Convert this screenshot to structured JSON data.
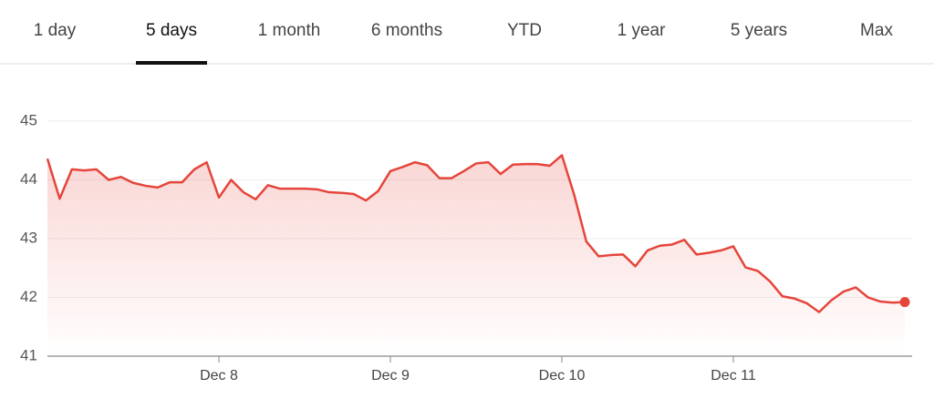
{
  "tabs": [
    "1 day",
    "5 days",
    "1 month",
    "6 months",
    "YTD",
    "1 year",
    "5 years",
    "Max"
  ],
  "selected_tab": 1,
  "chart_data": {
    "type": "line",
    "color": "#e5453b",
    "grid": true,
    "categories": [
      null,
      null,
      null,
      null,
      null,
      null,
      null,
      null,
      null,
      null,
      null,
      null,
      null,
      null,
      "Dec 8",
      null,
      null,
      null,
      null,
      null,
      null,
      null,
      null,
      null,
      null,
      null,
      null,
      null,
      "Dec 9",
      null,
      null,
      null,
      null,
      null,
      null,
      null,
      null,
      null,
      null,
      null,
      null,
      null,
      "Dec 10",
      null,
      null,
      null,
      null,
      null,
      null,
      null,
      null,
      null,
      null,
      null,
      null,
      null,
      "Dec 11",
      null,
      null,
      null,
      null,
      null,
      null,
      null,
      null,
      null,
      null,
      null,
      null,
      null,
      null
    ],
    "values": [
      44.36,
      43.68,
      44.18,
      44.16,
      44.18,
      44.0,
      44.05,
      43.95,
      43.9,
      43.87,
      43.96,
      43.96,
      44.18,
      44.3,
      43.7,
      44.0,
      43.79,
      43.67,
      43.91,
      43.85,
      43.85,
      43.85,
      43.84,
      43.79,
      43.78,
      43.76,
      43.65,
      43.81,
      44.15,
      44.22,
      44.3,
      44.25,
      44.03,
      44.03,
      44.15,
      44.28,
      44.3,
      44.1,
      44.26,
      44.27,
      44.27,
      44.24,
      44.42,
      43.75,
      42.95,
      42.7,
      42.72,
      42.73,
      42.53,
      42.8,
      42.88,
      42.9,
      42.98,
      42.73,
      42.76,
      42.8,
      42.87,
      42.51,
      42.45,
      42.27,
      42.02,
      41.98,
      41.9,
      41.75,
      41.95,
      42.1,
      42.17,
      42.0,
      41.93,
      41.91,
      41.92
    ],
    "ylim": [
      41,
      45
    ],
    "yticks": [
      41,
      42,
      43,
      44,
      45
    ]
  }
}
